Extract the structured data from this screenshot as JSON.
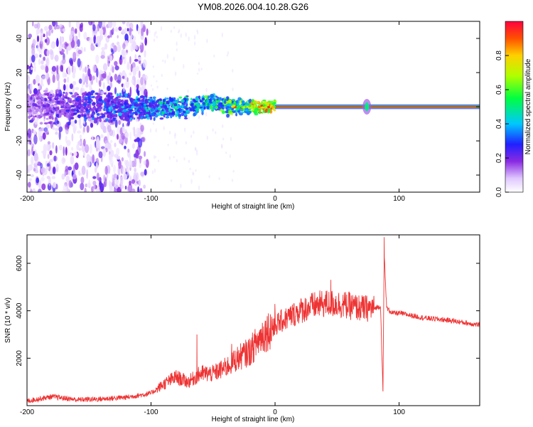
{
  "title": "YM08.2026.004.10.28.G26",
  "chart_data": [
    {
      "type": "heatmap",
      "name": "spectrogram",
      "title": "YM08.2026.004.10.28.G26",
      "xlabel": "Height of straight line (km)",
      "ylabel": "Frequency (Hz)",
      "xlim": [
        -200,
        165
      ],
      "ylim": [
        -50,
        50
      ],
      "x_ticks": [
        "-200",
        "-100",
        "0",
        "100"
      ],
      "x_tick_values": [
        -200,
        -100,
        0,
        100
      ],
      "y_ticks": [
        "40",
        "20",
        "0",
        "-20",
        "-40"
      ],
      "y_tick_values": [
        40,
        20,
        0,
        -20,
        -40
      ],
      "colorbar": {
        "label": "Normalized spectral amplitude",
        "range": [
          0.0,
          1.0
        ],
        "ticks": [
          "0.0",
          "0.2",
          "0.4",
          "0.6",
          "0.8"
        ],
        "tick_values": [
          0.0,
          0.2,
          0.4,
          0.6,
          0.8
        ]
      },
      "features": {
        "noise_region_x": [
          -200,
          -103
        ],
        "carrier_frequency_hz": 0,
        "carrier_start_x": 0,
        "disturbance_x": 74
      }
    },
    {
      "type": "line",
      "name": "snr",
      "xlabel": "Height of straight line (km)",
      "ylabel": "SNR (10 * v/v)",
      "xlim": [
        -200,
        165
      ],
      "ylim": [
        0,
        7200
      ],
      "x_ticks": [
        "-200",
        "-100",
        "0",
        "100"
      ],
      "x_tick_values": [
        -200,
        -100,
        0,
        100
      ],
      "y_ticks": [
        "2000",
        "4000",
        "6000"
      ],
      "y_tick_values": [
        2000,
        4000,
        6000
      ],
      "series": [
        {
          "name": "SNR",
          "color": "#ee3333",
          "x": [
            -200,
            -180,
            -160,
            -140,
            -120,
            -100,
            -90,
            -80,
            -70,
            -60,
            -50,
            -40,
            -30,
            -20,
            -10,
            0,
            10,
            20,
            30,
            40,
            50,
            60,
            70,
            80,
            85,
            87,
            88,
            90,
            95,
            100,
            120,
            140,
            165
          ],
          "y": [
            200,
            380,
            250,
            280,
            350,
            520,
            900,
            1200,
            1000,
            1350,
            1350,
            1600,
            2000,
            2300,
            3000,
            3400,
            3700,
            4000,
            4200,
            4300,
            4300,
            4200,
            4100,
            4100,
            4200,
            600,
            6400,
            4100,
            3900,
            3900,
            3700,
            3600,
            3400
          ]
        }
      ],
      "spikes": [
        {
          "x": 88,
          "y": 7100
        },
        {
          "x": 87,
          "y": 600
        },
        {
          "x": -63,
          "y": 3000
        },
        {
          "x": -35,
          "y": 2600
        },
        {
          "x": 45,
          "y": 5300
        }
      ]
    }
  ]
}
